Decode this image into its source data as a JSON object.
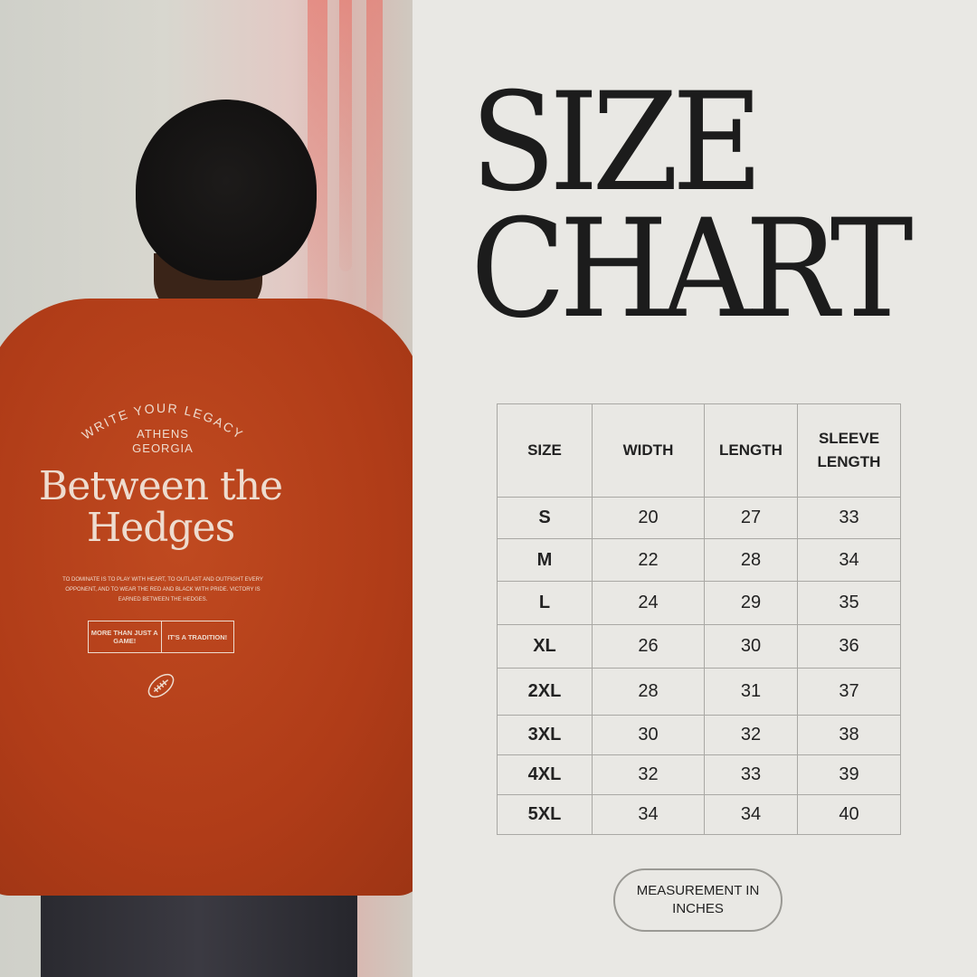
{
  "photo": {
    "arc_text": "WRITE YOUR LEGACY",
    "location_line1": "ATHENS",
    "location_line2": "GEORGIA",
    "headline_line1": "Between the",
    "headline_line2": "Hedges",
    "blurb": "TO DOMINATE IS TO PLAY WITH HEART, TO OUTLAST AND OUTFIGHT EVERY OPPONENT, AND TO WEAR THE RED AND BLACK WITH PRIDE. VICTORY IS EARNED BETWEEN THE HEDGES.",
    "box_left": "MORE THAN JUST A GAME!",
    "box_right": "IT'S A TRADITION!",
    "icon": "football-icon",
    "shirt_color": "#b8421c"
  },
  "title": {
    "line1": "SIZE",
    "line2": "CHART"
  },
  "table": {
    "headers": [
      "SIZE",
      "WIDTH",
      "LENGTH",
      "SLEEVE LENGTH"
    ],
    "rows": [
      [
        "S",
        "20",
        "27",
        "33"
      ],
      [
        "M",
        "22",
        "28",
        "34"
      ],
      [
        "L",
        "24",
        "29",
        "35"
      ],
      [
        "XL",
        "26",
        "30",
        "36"
      ],
      [
        "2XL",
        "28",
        "31",
        "37"
      ],
      [
        "3XL",
        "30",
        "32",
        "38"
      ],
      [
        "4XL",
        "32",
        "33",
        "39"
      ],
      [
        "5XL",
        "34",
        "34",
        "40"
      ]
    ]
  },
  "unit_note": "MEASUREMENT IN INCHES"
}
